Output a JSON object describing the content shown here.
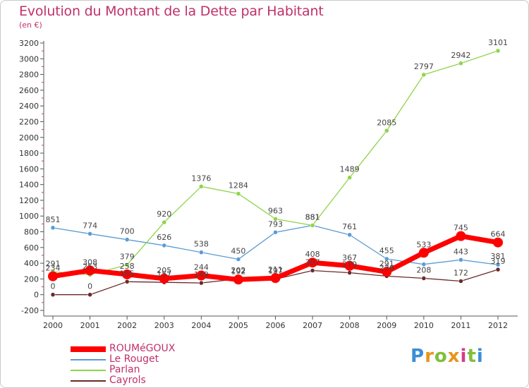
{
  "title": "Evolution du Montant de la Dette par Habitant",
  "unit": "(en €)",
  "brand": {
    "text": "Proxiti",
    "letter_colors": [
      "#3a8ed6",
      "#e8941e",
      "#7fbf3a",
      "#e8941e",
      "#d23c8c",
      "#7fbf3a",
      "#3a8ed6"
    ]
  },
  "chart_data": {
    "type": "line",
    "x": [
      "2000",
      "2001",
      "2002",
      "2003",
      "2004",
      "2005",
      "2006",
      "2007",
      "2008",
      "2009",
      "2010",
      "2011",
      "2012"
    ],
    "ylim": [
      -200,
      3200
    ],
    "yticks": [
      "-200",
      "0",
      "200",
      "400",
      "600",
      "800",
      "1000",
      "1200",
      "1400",
      "1600",
      "1800",
      "2000",
      "2200",
      "2400",
      "2600",
      "2800",
      "3000",
      "3200"
    ],
    "grid": false,
    "legend_position": "bottom-left",
    "series": [
      {
        "name": "ROUMéGOUX",
        "color": "#ff0000",
        "values": [
          234,
          308,
          258,
          205,
          244,
          192,
          211,
          408,
          367,
          291,
          533,
          745,
          664
        ],
        "labels": [
          "234",
          "308",
          "258",
          "205",
          "244",
          "192",
          "211",
          "408",
          "367",
          "291",
          "533",
          "745",
          "664"
        ]
      },
      {
        "name": "Le Rouget",
        "color": "#5b9bd5",
        "values": [
          851,
          774,
          700,
          626,
          538,
          450,
          793,
          881,
          761,
          455,
          386,
          443,
          381
        ],
        "labels": [
          "851",
          "774",
          "700",
          "626",
          "538",
          "450",
          "793",
          "881",
          "761",
          "455",
          "",
          "443",
          "381"
        ]
      },
      {
        "name": "Parlan",
        "color": "#8fd44a",
        "values": [
          291,
          253,
          379,
          920,
          1376,
          1284,
          963,
          881,
          1489,
          2085,
          2797,
          2942,
          3101
        ],
        "labels": [
          "291",
          "253",
          "379",
          "920",
          "1376",
          "1284",
          "963",
          "881",
          "1489",
          "2085",
          "2797",
          "2942",
          "3101"
        ]
      },
      {
        "name": "Cayrols",
        "color": "#6b2a2a",
        "values": [
          0,
          0,
          165,
          157,
          149,
          202,
          197,
          307,
          279,
          236,
          208,
          172,
          319
        ],
        "labels": [
          "0",
          "0",
          "165",
          "157",
          "149",
          "202",
          "197",
          "307",
          "279",
          "236",
          "208",
          "172",
          "319"
        ]
      }
    ]
  }
}
